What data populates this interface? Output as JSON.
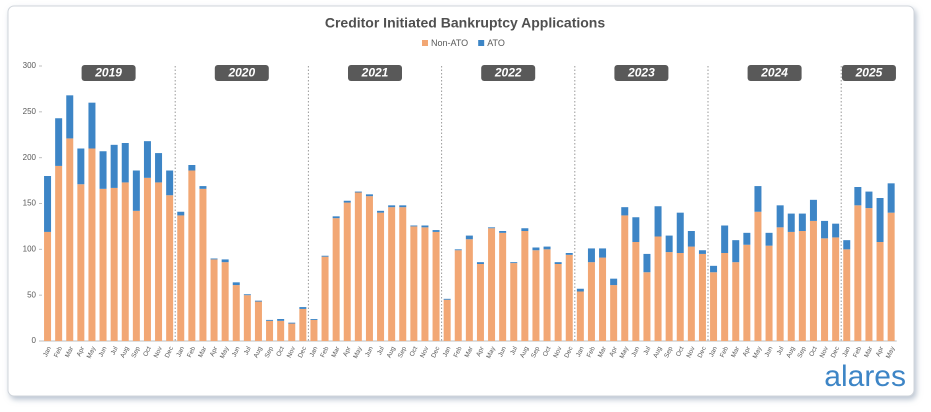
{
  "chart_data": {
    "type": "stacked_bar",
    "title": "Creditor Initiated Bankruptcy Applications",
    "brand": "alares",
    "year_labels": [
      "2019",
      "2020",
      "2021",
      "2022",
      "2023",
      "2024",
      "2025"
    ],
    "categories": [
      "Jan",
      "Feb",
      "Mar",
      "Apr",
      "May",
      "Jun",
      "Jul",
      "Aug",
      "Sep",
      "Oct",
      "Nov",
      "Dec",
      "Jan",
      "Feb",
      "Mar",
      "Apr",
      "May",
      "Jun",
      "Jul",
      "Aug",
      "Sep",
      "Oct",
      "Nov",
      "Dec",
      "Jan",
      "Feb",
      "Mar",
      "Apr",
      "May",
      "Jun",
      "Jul",
      "Aug",
      "Sep",
      "Oct",
      "Nov",
      "Dec",
      "Jan",
      "Feb",
      "Mar",
      "Apr",
      "May",
      "Jun",
      "Jul",
      "Aug",
      "Sep",
      "Oct",
      "Nov",
      "Dec",
      "Jan",
      "Feb",
      "Mar",
      "Apr",
      "May",
      "Jun",
      "Jul",
      "Aug",
      "Sep",
      "Oct",
      "Nov",
      "Dec",
      "Jan",
      "Feb",
      "Mar",
      "Apr",
      "May",
      "Jun",
      "Jul",
      "Aug",
      "Sep",
      "Oct",
      "Nov",
      "Dec",
      "Jan",
      "Feb",
      "Mar",
      "Apr",
      "May"
    ],
    "series": [
      {
        "name": "Non-ATO",
        "color": "#f2a774",
        "values": [
          119,
          191,
          221,
          171,
          210,
          166,
          167,
          173,
          142,
          178,
          173,
          159,
          137,
          186,
          166,
          89,
          86,
          61,
          50,
          43,
          22,
          22,
          19,
          35,
          23,
          92,
          134,
          151,
          162,
          158,
          140,
          146,
          146,
          125,
          124,
          119,
          45,
          99,
          111,
          84,
          123,
          118,
          85,
          120,
          99,
          100,
          84,
          94,
          54,
          86,
          91,
          61,
          137,
          108,
          75,
          114,
          97,
          96,
          103,
          95,
          75,
          96,
          86,
          105,
          141,
          104,
          124,
          119,
          120,
          131,
          112,
          113,
          100,
          148,
          145,
          108,
          140
        ]
      },
      {
        "name": "ATO",
        "color": "#3d85c6",
        "values": [
          61,
          52,
          47,
          39,
          50,
          41,
          47,
          43,
          44,
          40,
          32,
          27,
          4,
          6,
          3,
          1,
          3,
          3,
          1,
          1,
          1,
          2,
          1,
          2,
          1,
          1,
          2,
          2,
          1,
          2,
          2,
          2,
          2,
          1,
          2,
          2,
          1,
          1,
          4,
          2,
          1,
          2,
          1,
          3,
          3,
          3,
          2,
          2,
          3,
          15,
          10,
          7,
          9,
          27,
          20,
          33,
          18,
          44,
          17,
          4,
          7,
          30,
          24,
          13,
          28,
          14,
          24,
          20,
          19,
          23,
          19,
          15,
          10,
          20,
          18,
          48,
          32
        ]
      }
    ],
    "ylim": [
      0,
      300
    ],
    "yticks": [
      0,
      50,
      100,
      150,
      200,
      250,
      300
    ],
    "legend": "top"
  }
}
